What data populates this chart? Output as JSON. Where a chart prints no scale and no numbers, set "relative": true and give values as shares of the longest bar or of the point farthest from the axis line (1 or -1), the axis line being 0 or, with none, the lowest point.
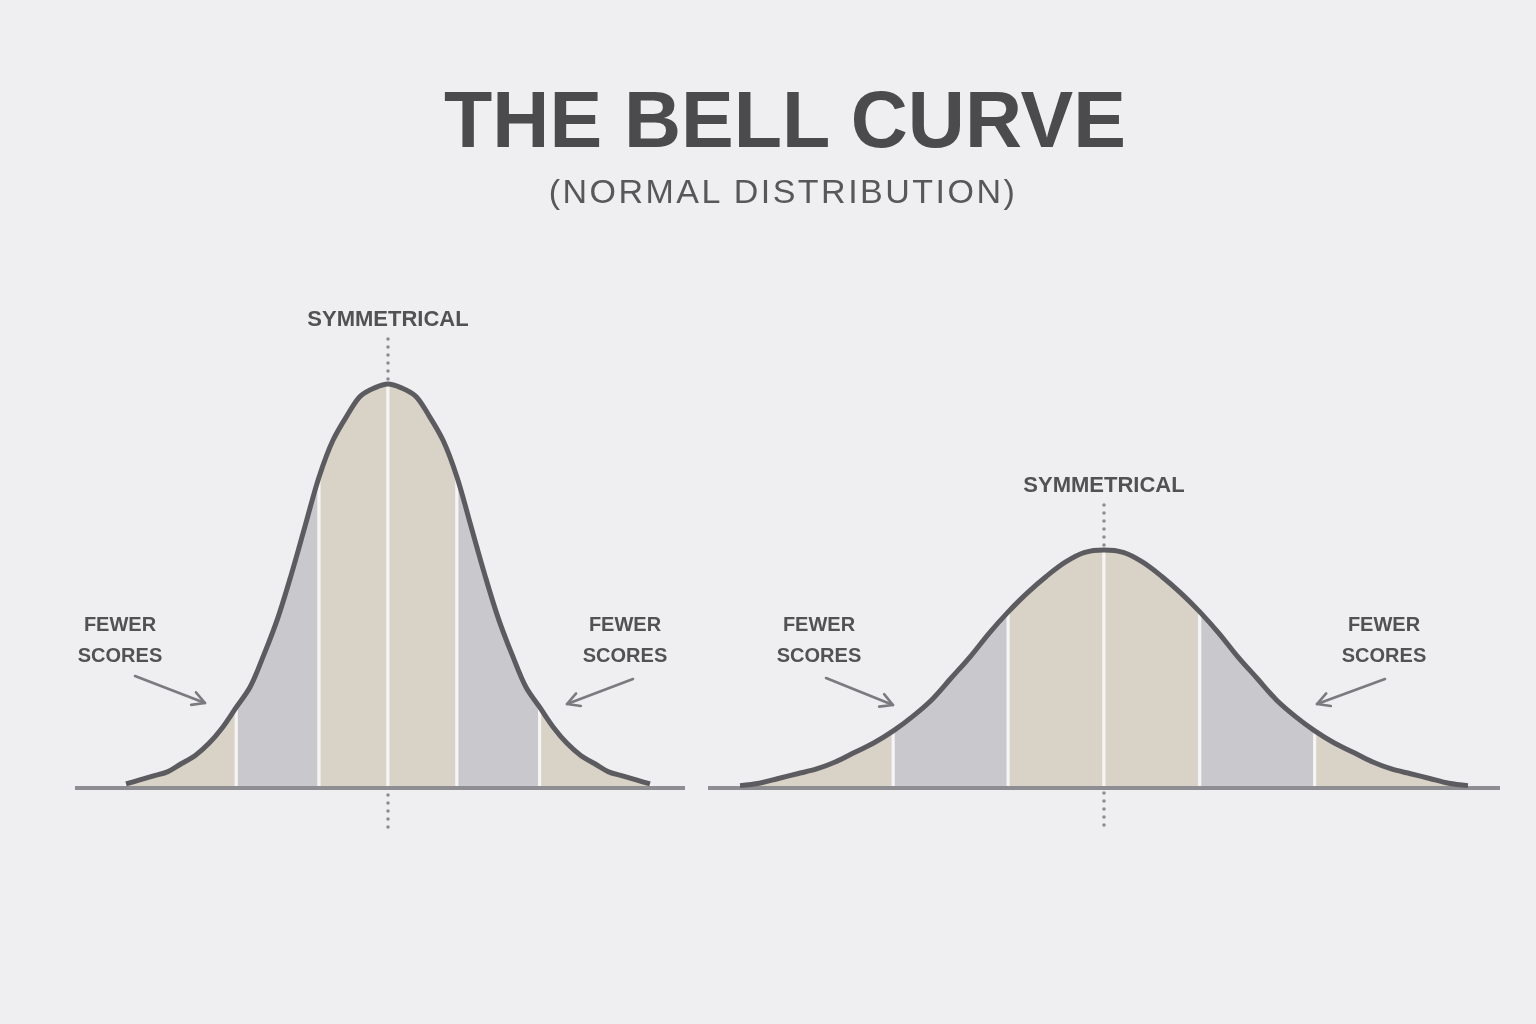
{
  "chart_data": [
    {
      "type": "area",
      "title": "THE BELL CURVE",
      "subtitle": "(NORMAL DISTRIBUTION)",
      "relative": true,
      "categories": [
        null,
        null,
        null,
        null,
        null,
        null,
        null,
        null,
        null,
        null,
        null,
        null,
        null,
        null,
        null,
        null,
        null,
        null,
        null,
        null,
        null,
        null,
        null,
        null,
        null,
        null,
        null,
        null,
        null,
        null,
        null,
        null,
        null,
        null,
        null,
        null,
        null,
        null,
        null
      ],
      "series": [
        {
          "color": "#d9d2c7",
          "values": [
            0.01,
            0.02,
            0.03,
            0.04,
            0.06,
            0.08,
            0.11,
            0.15,
            0.2,
            null,
            null,
            null,
            null,
            null,
            null,
            null,
            null,
            null,
            null,
            null,
            null,
            null,
            null,
            null,
            null,
            null,
            null,
            null,
            null,
            null,
            null,
            null,
            null,
            null,
            null,
            null,
            null,
            null,
            null
          ]
        },
        {
          "color": "#c9c8cc",
          "values": [
            null,
            null,
            null,
            null,
            null,
            null,
            null,
            null,
            0.2,
            0.25,
            0.33,
            0.42,
            0.53,
            0.65,
            0.77,
            null,
            null,
            null,
            null,
            null,
            null,
            null,
            null,
            null,
            null,
            null,
            null,
            null,
            null,
            null,
            null,
            null,
            null,
            null,
            null,
            null,
            null,
            null,
            null
          ]
        },
        {
          "color": "#d9d2c7",
          "values": [
            null,
            null,
            null,
            null,
            null,
            null,
            null,
            null,
            null,
            null,
            null,
            null,
            null,
            null,
            0.77,
            0.86,
            0.92,
            0.97,
            0.99,
            1,
            null,
            null,
            null,
            null,
            null,
            null,
            null,
            null,
            null,
            null,
            null,
            null,
            null,
            null,
            null,
            null,
            null,
            null,
            null
          ]
        },
        {
          "color": "#d9d2c7",
          "values": [
            null,
            null,
            null,
            null,
            null,
            null,
            null,
            null,
            null,
            null,
            null,
            null,
            null,
            null,
            null,
            null,
            null,
            null,
            null,
            1,
            0.99,
            0.97,
            0.92,
            0.86,
            0.77,
            null,
            null,
            null,
            null,
            null,
            null,
            null,
            null,
            null,
            null,
            null,
            null,
            null,
            null
          ]
        },
        {
          "color": "#c9c8cc",
          "values": [
            null,
            null,
            null,
            null,
            null,
            null,
            null,
            null,
            null,
            null,
            null,
            null,
            null,
            null,
            null,
            null,
            null,
            null,
            null,
            null,
            null,
            null,
            null,
            null,
            0.77,
            0.65,
            0.53,
            0.42,
            0.33,
            0.25,
            0.2,
            null,
            null,
            null,
            null,
            null,
            null,
            null,
            null
          ]
        },
        {
          "color": "#d9d2c7",
          "values": [
            null,
            null,
            null,
            null,
            null,
            null,
            null,
            null,
            null,
            null,
            null,
            null,
            null,
            null,
            null,
            null,
            null,
            null,
            null,
            null,
            null,
            null,
            null,
            null,
            null,
            null,
            null,
            null,
            null,
            null,
            0.2,
            0.15,
            0.11,
            0.08,
            0.06,
            0.04,
            0.03,
            0.02,
            0.01
          ]
        },
        {
          "type": "line",
          "color": "#5c5c60",
          "values": [
            0.01,
            0.02,
            0.03,
            0.04,
            0.06,
            0.08,
            0.11,
            0.15,
            0.2,
            0.25,
            0.33,
            0.42,
            0.53,
            0.65,
            0.77,
            0.86,
            0.92,
            0.97,
            0.99,
            1,
            0.99,
            0.97,
            0.92,
            0.86,
            0.77,
            0.65,
            0.53,
            0.42,
            0.33,
            0.25,
            0.2,
            0.15,
            0.11,
            0.08,
            0.06,
            0.04,
            0.03,
            0.02,
            0.01
          ]
        }
      ],
      "annotations": [
        "SYMMETRICAL",
        "FEWER SCORES",
        "FEWER SCORES"
      ]
    },
    {
      "type": "area",
      "relative": true,
      "categories": [
        null,
        null,
        null,
        null,
        null,
        null,
        null,
        null,
        null,
        null,
        null,
        null,
        null,
        null,
        null,
        null,
        null,
        null,
        null,
        null,
        null,
        null,
        null,
        null,
        null,
        null,
        null,
        null,
        null,
        null,
        null,
        null,
        null,
        null,
        null,
        null,
        null,
        null,
        null
      ],
      "series": [
        {
          "color": "#d9d2c7",
          "values": [
            0.01,
            0.02,
            0.04,
            0.06,
            0.08,
            0.11,
            0.15,
            0.19,
            0.24,
            null,
            null,
            null,
            null,
            null,
            null,
            null,
            null,
            null,
            null,
            null,
            null,
            null,
            null,
            null,
            null,
            null,
            null,
            null,
            null,
            null,
            null,
            null,
            null,
            null,
            null,
            null,
            null,
            null,
            null
          ]
        },
        {
          "color": "#c9c8cc",
          "values": [
            null,
            null,
            null,
            null,
            null,
            null,
            null,
            null,
            0.24,
            0.3,
            0.37,
            0.46,
            0.55,
            0.65,
            0.74,
            null,
            null,
            null,
            null,
            null,
            null,
            null,
            null,
            null,
            null,
            null,
            null,
            null,
            null,
            null,
            null,
            null,
            null,
            null,
            null,
            null,
            null,
            null,
            null
          ]
        },
        {
          "color": "#d9d2c7",
          "values": [
            null,
            null,
            null,
            null,
            null,
            null,
            null,
            null,
            null,
            null,
            null,
            null,
            null,
            null,
            0.74,
            0.82,
            0.89,
            0.95,
            0.99,
            1,
            null,
            null,
            null,
            null,
            null,
            null,
            null,
            null,
            null,
            null,
            null,
            null,
            null,
            null,
            null,
            null,
            null,
            null,
            null
          ]
        },
        {
          "color": "#d9d2c7",
          "values": [
            null,
            null,
            null,
            null,
            null,
            null,
            null,
            null,
            null,
            null,
            null,
            null,
            null,
            null,
            null,
            null,
            null,
            null,
            null,
            1,
            0.99,
            0.95,
            0.89,
            0.82,
            0.74,
            null,
            null,
            null,
            null,
            null,
            null,
            null,
            null,
            null,
            null,
            null,
            null,
            null,
            null
          ]
        },
        {
          "color": "#c9c8cc",
          "values": [
            null,
            null,
            null,
            null,
            null,
            null,
            null,
            null,
            null,
            null,
            null,
            null,
            null,
            null,
            null,
            null,
            null,
            null,
            null,
            null,
            null,
            null,
            null,
            null,
            0.74,
            0.65,
            0.55,
            0.46,
            0.37,
            0.3,
            0.24,
            null,
            null,
            null,
            null,
            null,
            null,
            null,
            null
          ]
        },
        {
          "color": "#d9d2c7",
          "values": [
            null,
            null,
            null,
            null,
            null,
            null,
            null,
            null,
            null,
            null,
            null,
            null,
            null,
            null,
            null,
            null,
            null,
            null,
            null,
            null,
            null,
            null,
            null,
            null,
            null,
            null,
            null,
            null,
            null,
            null,
            0.24,
            0.19,
            0.15,
            0.11,
            0.08,
            0.06,
            0.04,
            0.02,
            0.01
          ]
        },
        {
          "type": "line",
          "color": "#5c5c60",
          "values": [
            0.01,
            0.02,
            0.04,
            0.06,
            0.08,
            0.11,
            0.15,
            0.19,
            0.24,
            0.3,
            0.37,
            0.46,
            0.55,
            0.65,
            0.74,
            0.82,
            0.89,
            0.95,
            0.99,
            1,
            0.99,
            0.95,
            0.89,
            0.82,
            0.74,
            0.65,
            0.55,
            0.46,
            0.37,
            0.3,
            0.24,
            0.19,
            0.15,
            0.11,
            0.08,
            0.06,
            0.04,
            0.02,
            0.01
          ]
        }
      ],
      "annotations": [
        "SYMMETRICAL",
        "FEWER SCORES",
        "FEWER SCORES"
      ]
    }
  ]
}
